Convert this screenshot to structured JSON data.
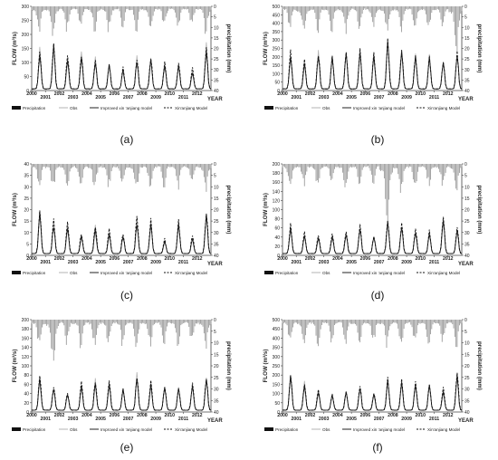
{
  "figure": {
    "legend_labels": {
      "precip": "Precipitation",
      "obs": "Obs",
      "improved": "Improved xin 'anjiang model",
      "xaj": "Xin'anjiang Model"
    },
    "year_axis_label": "YEAR",
    "flow_axis_label": "FLOW (m³/s)",
    "precip_axis_label": "precipitation (mm)",
    "colors": {
      "precip": "#9a9a9a",
      "obs": "#b3b3b3",
      "improved": "#222222",
      "xaj": "#111111"
    }
  },
  "chart_data": [
    {
      "type": "line",
      "panel_label": "(a)",
      "years": [
        "2000",
        "2001",
        "2002",
        "2003",
        "2004",
        "2005",
        "2006",
        "2007",
        "2008",
        "2009",
        "2010",
        "2011",
        "2012"
      ],
      "ylim": [
        0,
        300
      ],
      "yticks": [
        0,
        50,
        100,
        150,
        200,
        250,
        300
      ],
      "precip_lim": [
        0,
        40
      ],
      "precip_ticks": [
        0,
        5,
        10,
        15,
        20,
        25,
        30,
        35,
        40
      ],
      "annual_peak_obs": [
        140,
        165,
        118,
        125,
        110,
        96,
        72,
        112,
        114,
        95,
        93,
        72,
        155
      ],
      "annual_peak_improved": [
        130,
        155,
        110,
        118,
        104,
        90,
        70,
        106,
        108,
        90,
        88,
        68,
        145
      ],
      "annual_peak_xaj": [
        145,
        160,
        125,
        130,
        115,
        100,
        80,
        118,
        120,
        100,
        97,
        78,
        160
      ],
      "annual_max_precip": [
        14,
        15,
        13,
        12,
        14,
        13,
        11,
        13,
        14,
        12,
        12,
        11,
        14
      ],
      "grid": false,
      "legend_position": "bottom"
    },
    {
      "type": "line",
      "panel_label": "(b)",
      "years": [
        "2000",
        "2001",
        "2002",
        "2003",
        "2004",
        "2005",
        "2006",
        "2007",
        "2008",
        "2009",
        "2010",
        "2011",
        "2012"
      ],
      "ylim": [
        0,
        500
      ],
      "yticks": [
        0,
        50,
        100,
        150,
        200,
        250,
        300,
        350,
        400,
        450,
        500
      ],
      "precip_lim": [
        0,
        40
      ],
      "precip_ticks": [
        0,
        5,
        10,
        15,
        20,
        25,
        30,
        35,
        40
      ],
      "annual_peak_obs": [
        225,
        165,
        215,
        200,
        235,
        225,
        205,
        305,
        240,
        205,
        195,
        175,
        230
      ],
      "annual_peak_improved": [
        215,
        160,
        205,
        195,
        225,
        215,
        200,
        290,
        230,
        200,
        190,
        170,
        220
      ],
      "annual_peak_xaj": [
        230,
        175,
        220,
        205,
        240,
        230,
        210,
        295,
        245,
        210,
        200,
        180,
        225
      ],
      "annual_max_precip": [
        12,
        17,
        14,
        13,
        14,
        12,
        13,
        15,
        13,
        12,
        13,
        12,
        25
      ],
      "grid": false,
      "legend_position": "bottom"
    },
    {
      "type": "line",
      "panel_label": "(c)",
      "years": [
        "2000",
        "2001",
        "2002",
        "2003",
        "2004",
        "2005",
        "2006",
        "2007",
        "2008",
        "2009",
        "2010",
        "2011",
        "2012"
      ],
      "ylim": [
        0,
        40
      ],
      "yticks": [
        0,
        5,
        10,
        15,
        20,
        25,
        30,
        35,
        40
      ],
      "precip_lim": [
        0,
        40
      ],
      "precip_ticks": [
        0,
        5,
        10,
        15,
        20,
        25,
        30,
        35,
        40
      ],
      "annual_peak_obs": [
        19,
        14,
        13,
        9,
        12,
        10,
        9,
        15,
        14,
        6,
        14,
        8,
        18
      ],
      "annual_peak_improved": [
        18,
        13,
        12,
        8,
        11,
        9,
        8,
        14,
        13,
        6,
        13,
        7,
        17
      ],
      "annual_peak_xaj": [
        20,
        15,
        14,
        10,
        13,
        11,
        10,
        17,
        15,
        7,
        15,
        9,
        19
      ],
      "annual_max_precip": [
        12,
        14,
        12,
        11,
        13,
        12,
        11,
        13,
        12,
        11,
        12,
        11,
        14
      ],
      "grid": false,
      "legend_position": "bottom"
    },
    {
      "type": "line",
      "panel_label": "(d)",
      "years": [
        "2000",
        "2001",
        "2002",
        "2003",
        "2004",
        "2005",
        "2006",
        "2007",
        "2008",
        "2009",
        "2010",
        "2011",
        "2012"
      ],
      "ylim": [
        0,
        200
      ],
      "yticks": [
        0,
        20,
        40,
        60,
        80,
        100,
        120,
        140,
        160,
        180,
        200
      ],
      "precip_lim": [
        0,
        40
      ],
      "precip_ticks": [
        0,
        5,
        10,
        15,
        20,
        25,
        30,
        35,
        40
      ],
      "annual_peak_obs": [
        60,
        45,
        40,
        45,
        50,
        60,
        42,
        75,
        62,
        55,
        48,
        82,
        55
      ],
      "annual_peak_improved": [
        58,
        42,
        38,
        42,
        48,
        56,
        40,
        72,
        58,
        52,
        45,
        78,
        52
      ],
      "annual_peak_xaj": [
        65,
        48,
        44,
        48,
        55,
        65,
        45,
        78,
        66,
        58,
        52,
        85,
        60
      ],
      "annual_max_precip": [
        12,
        11,
        12,
        11,
        12,
        11,
        10,
        30,
        14,
        12,
        11,
        12,
        13
      ],
      "grid": false,
      "legend_position": "bottom"
    },
    {
      "type": "line",
      "panel_label": "(e)",
      "years": [
        "2000",
        "2001",
        "2002",
        "2003",
        "2004",
        "2005",
        "2006",
        "2007",
        "2008",
        "2009",
        "2010",
        "2011",
        "2012"
      ],
      "ylim": [
        0,
        200
      ],
      "yticks": [
        0,
        20,
        40,
        60,
        80,
        100,
        120,
        140,
        160,
        180,
        200
      ],
      "precip_lim": [
        0,
        40
      ],
      "precip_ticks": [
        0,
        5,
        10,
        15,
        20,
        25,
        30,
        35,
        40
      ],
      "annual_peak_obs": [
        75,
        55,
        40,
        60,
        65,
        62,
        50,
        78,
        60,
        55,
        52,
        58,
        72
      ],
      "annual_peak_improved": [
        70,
        52,
        38,
        56,
        62,
        58,
        48,
        74,
        57,
        52,
        50,
        55,
        68
      ],
      "annual_peak_xaj": [
        78,
        58,
        44,
        62,
        68,
        66,
        54,
        80,
        64,
        58,
        55,
        62,
        76
      ],
      "annual_max_precip": [
        13,
        22,
        12,
        13,
        14,
        13,
        12,
        14,
        13,
        12,
        13,
        12,
        14
      ],
      "grid": false,
      "legend_position": "bottom"
    },
    {
      "type": "line",
      "panel_label": "(f)",
      "years": [
        "2000",
        "2001",
        "2002",
        "2003",
        "2004",
        "2005",
        "2006",
        "2007",
        "2008",
        "2009",
        "2010",
        "2011",
        "2012"
      ],
      "ylim": [
        0,
        500
      ],
      "yticks": [
        0,
        50,
        100,
        150,
        200,
        250,
        300,
        350,
        400,
        450,
        500
      ],
      "precip_lim": [
        0,
        40
      ],
      "precip_ticks": [
        0,
        5,
        10,
        15,
        20,
        25,
        30,
        35,
        40
      ],
      "annual_peak_obs": [
        205,
        150,
        110,
        95,
        110,
        130,
        100,
        175,
        160,
        155,
        150,
        120,
        200
      ],
      "annual_peak_improved": [
        195,
        140,
        105,
        90,
        105,
        125,
        95,
        168,
        152,
        148,
        142,
        115,
        190
      ],
      "annual_peak_xaj": [
        210,
        160,
        118,
        100,
        118,
        138,
        105,
        180,
        168,
        160,
        155,
        128,
        210
      ],
      "annual_max_precip": [
        12,
        14,
        13,
        12,
        12,
        13,
        12,
        13,
        13,
        12,
        13,
        12,
        13
      ],
      "grid": false,
      "legend_position": "bottom"
    }
  ]
}
